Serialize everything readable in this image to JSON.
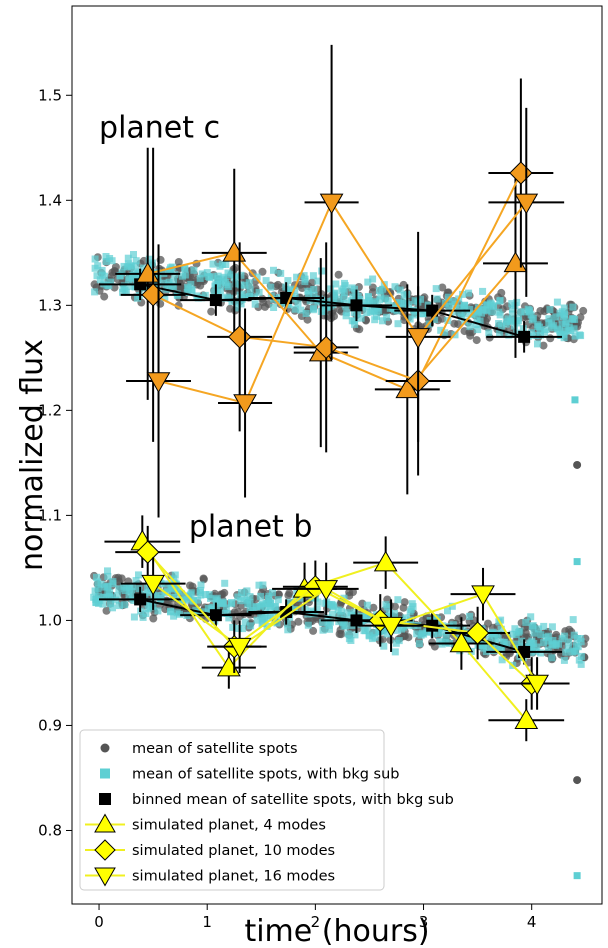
{
  "chart_data": {
    "type": "scatter",
    "title": "",
    "xlabel": "time (hours)",
    "ylabel": "normalized flux",
    "xlim": [
      -0.25,
      4.65
    ],
    "ylim": [
      0.73,
      1.585
    ],
    "xticks": [
      0,
      1,
      2,
      3,
      4
    ],
    "yticks": [
      0.8,
      0.9,
      1.0,
      1.1,
      1.2,
      1.3,
      1.4,
      1.5
    ],
    "ytick_labels": [
      "0.8",
      "0.9",
      "1.0",
      "1.1",
      "1.2",
      "1.3",
      "1.4",
      "1.5"
    ],
    "grid": false,
    "legend_position": "lower-left",
    "annotations": [
      {
        "text": "planet c",
        "x": 0.0,
        "y": 1.46
      },
      {
        "text": "planet b",
        "x": 0.83,
        "y": 1.08
      }
    ],
    "colors": {
      "gray": "#555555",
      "cyan": "#5ecfd3",
      "black": "#000000",
      "orange": "#f29a1c",
      "orange_line": "#f5a623",
      "yellow": "#ffff00",
      "yellow_line": "#f0f020"
    },
    "legend": [
      {
        "label": "mean of satellite spots",
        "marker": "circle"
      },
      {
        "label": "mean of satellite spots, with bkg sub",
        "marker": "square-cyan"
      },
      {
        "label": "binned mean of satellite spots, with bkg sub",
        "marker": "square-black"
      },
      {
        "label": "simulated planet, 4 modes",
        "marker": "triangle-up"
      },
      {
        "label": "simulated planet, 10 modes",
        "marker": "diamond"
      },
      {
        "label": "simulated planet, 16 modes",
        "marker": "triangle-down"
      }
    ],
    "scatter_bands": [
      {
        "group": "c",
        "start": 1.33,
        "end": 1.28,
        "spread": 0.03,
        "x0": -0.05,
        "x1": 4.5
      },
      {
        "group": "b",
        "start": 1.03,
        "end": 0.975,
        "spread": 0.03,
        "x0": -0.05,
        "x1": 4.5
      }
    ],
    "outliers": [
      {
        "x": 4.42,
        "y": 1.148,
        "series": "gray"
      },
      {
        "x": 4.42,
        "y": 0.848,
        "series": "gray"
      },
      {
        "x": 4.42,
        "y": 1.056,
        "series": "cyan"
      },
      {
        "x": 4.42,
        "y": 0.757,
        "series": "cyan"
      },
      {
        "x": 4.4,
        "y": 1.21,
        "series": "cyan"
      }
    ],
    "series": [
      {
        "name": "binned mean of satellite spots, with bkg sub",
        "group": "c",
        "x": [
          0.38,
          1.08,
          1.73,
          2.38,
          3.08,
          3.93
        ],
        "y": [
          1.32,
          1.305,
          1.307,
          1.3,
          1.295,
          1.27
        ],
        "xerr": [
          0.38,
          0.33,
          0.35,
          0.33,
          0.35,
          0.35
        ],
        "yerr": [
          0.015,
          0.015,
          0.015,
          0.015,
          0.015,
          0.015
        ]
      },
      {
        "name": "simulated planet, 4 modes",
        "group": "c",
        "x": [
          0.45,
          1.25,
          2.05,
          2.85,
          3.85
        ],
        "y": [
          1.33,
          1.35,
          1.255,
          1.22,
          1.34
        ],
        "xerr": [
          0.3,
          0.3,
          0.25,
          0.3,
          0.3
        ],
        "yerr": [
          0.12,
          0.08,
          0.09,
          0.1,
          0.09
        ]
      },
      {
        "name": "simulated planet, 10 modes",
        "group": "c",
        "x": [
          0.5,
          1.3,
          2.1,
          2.95,
          3.9
        ],
        "y": [
          1.31,
          1.27,
          1.26,
          1.228,
          1.426
        ],
        "xerr": [
          0.3,
          0.3,
          0.3,
          0.3,
          0.3
        ],
        "yerr": [
          0.14,
          0.09,
          0.1,
          0.09,
          0.09
        ]
      },
      {
        "name": "simulated planet, 16 modes",
        "group": "c",
        "x": [
          0.55,
          1.35,
          2.15,
          2.95,
          3.95
        ],
        "y": [
          1.228,
          1.207,
          1.398,
          1.27,
          1.398
        ],
        "xerr": [
          0.3,
          0.25,
          0.25,
          0.3,
          0.35
        ],
        "yerr": [
          0.13,
          0.09,
          0.15,
          0.1,
          0.09
        ]
      },
      {
        "name": "binned mean of satellite spots, with bkg sub",
        "group": "b",
        "x": [
          0.38,
          1.08,
          1.73,
          2.38,
          3.08,
          3.93
        ],
        "y": [
          1.02,
          1.005,
          1.008,
          1.0,
          0.995,
          0.97
        ],
        "xerr": [
          0.38,
          0.33,
          0.35,
          0.33,
          0.35,
          0.35
        ],
        "yerr": [
          0.012,
          0.012,
          0.012,
          0.012,
          0.012,
          0.012
        ]
      },
      {
        "name": "simulated planet, 4 modes",
        "group": "b",
        "x": [
          0.4,
          1.2,
          1.9,
          2.65,
          3.35,
          3.95
        ],
        "y": [
          1.075,
          0.955,
          1.03,
          1.055,
          0.978,
          0.905
        ],
        "xerr": [
          0.35,
          0.25,
          0.3,
          0.3,
          0.3,
          0.35
        ],
        "yerr": [
          0.025,
          0.02,
          0.025,
          0.025,
          0.025,
          0.02
        ]
      },
      {
        "name": "simulated planet, 10 modes",
        "group": "b",
        "x": [
          0.45,
          1.25,
          2.0,
          2.6,
          3.5,
          4.0
        ],
        "y": [
          1.065,
          0.975,
          1.032,
          1.0,
          0.988,
          0.94
        ],
        "xerr": [
          0.3,
          0.25,
          0.3,
          0.3,
          0.3,
          0.3
        ],
        "yerr": [
          0.025,
          0.025,
          0.025,
          0.025,
          0.025,
          0.025
        ]
      },
      {
        "name": "simulated planet, 16 modes",
        "group": "b",
        "x": [
          0.5,
          1.3,
          2.1,
          2.7,
          3.55,
          4.05
        ],
        "y": [
          1.035,
          0.975,
          1.03,
          0.995,
          1.025,
          0.94
        ],
        "xerr": [
          0.3,
          0.25,
          0.3,
          0.3,
          0.3,
          0.3
        ],
        "yerr": [
          0.025,
          0.025,
          0.025,
          0.025,
          0.025,
          0.025
        ]
      }
    ]
  }
}
